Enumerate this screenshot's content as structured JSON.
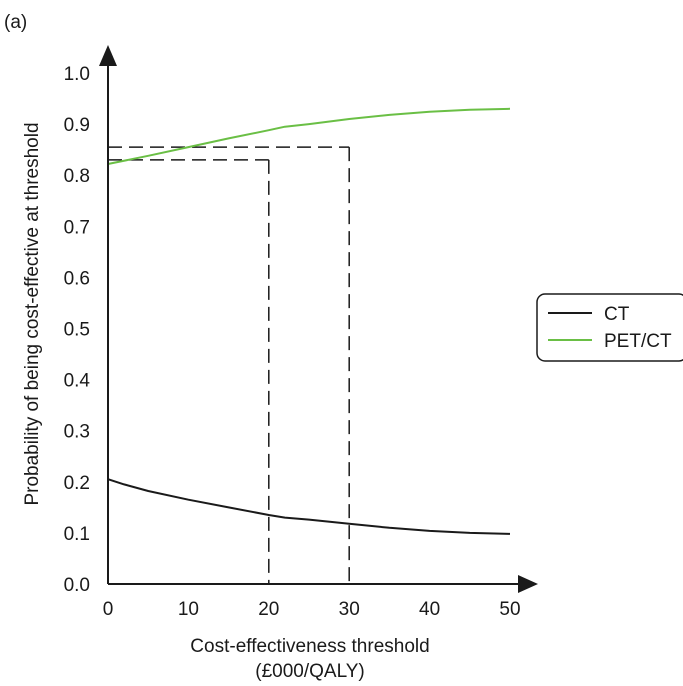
{
  "chart_data": {
    "type": "line",
    "panel_label": "(a)",
    "xlabel_line1": "Cost-effectiveness threshold",
    "xlabel_line2": "(£000/QALY)",
    "ylabel": "Probability of being cost-effective at threshold",
    "xlim": [
      0,
      50
    ],
    "ylim": [
      0,
      1.0
    ],
    "x_ticks": [
      0,
      10,
      20,
      30,
      40,
      50
    ],
    "x_tick_labels": [
      "0",
      "10",
      "20",
      "30",
      "40",
      "50"
    ],
    "y_ticks": [
      0.0,
      0.1,
      0.2,
      0.3,
      0.4,
      0.5,
      0.6,
      0.7,
      0.8,
      0.9,
      1.0
    ],
    "y_tick_labels": [
      "0.0",
      "0.1",
      "0.2",
      "0.3",
      "0.4",
      "0.5",
      "0.6",
      "0.7",
      "0.8",
      "0.9",
      "1.0"
    ],
    "grid": false,
    "legend_position": "right",
    "series": [
      {
        "name": "CT",
        "color": "#1a1a1a",
        "x": [
          0,
          2,
          5,
          10,
          15,
          20,
          22,
          25,
          30,
          35,
          40,
          45,
          50
        ],
        "y": [
          0.205,
          0.195,
          0.182,
          0.165,
          0.15,
          0.135,
          0.13,
          0.126,
          0.118,
          0.11,
          0.104,
          0.1,
          0.098
        ]
      },
      {
        "name": "PET/CT",
        "color": "#6abf45",
        "x": [
          0,
          5,
          10,
          15,
          20,
          22,
          25,
          30,
          35,
          40,
          45,
          50
        ],
        "y": [
          0.822,
          0.838,
          0.855,
          0.872,
          0.888,
          0.895,
          0.9,
          0.91,
          0.918,
          0.924,
          0.928,
          0.93
        ]
      }
    ],
    "reference_lines": [
      {
        "x": 20,
        "y": 0.83
      },
      {
        "x": 30,
        "y": 0.855
      }
    ]
  }
}
